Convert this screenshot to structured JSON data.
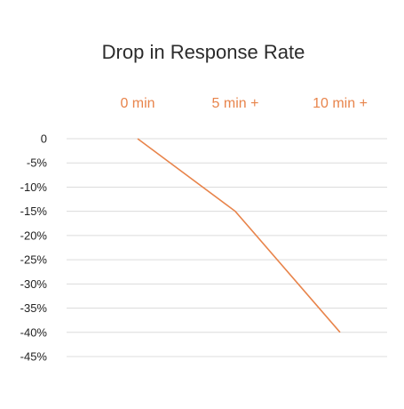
{
  "chart_data": {
    "type": "line",
    "title": "Drop in Response Rate",
    "xlabel": "",
    "ylabel": "",
    "x_position": "top",
    "categories": [
      "0 min",
      "5 min +",
      "10 min +"
    ],
    "series": [
      {
        "values": [
          0,
          -15,
          -40
        ]
      }
    ],
    "yticks": [
      0,
      -5,
      -10,
      -15,
      -20,
      -25,
      -30,
      -35,
      -40,
      -45
    ],
    "ytick_labels": [
      "0",
      "-5%",
      "-10%",
      "-15%",
      "-20%",
      "-25%",
      "-30%",
      "-35%",
      "-40%",
      "-45%"
    ],
    "ylim": [
      -45,
      0
    ],
    "grid": true,
    "legend": "none"
  },
  "colors": {
    "accent": "#e8844b",
    "title": "#2b2b2b",
    "tick": "#222222",
    "grid": "#dcdcdc"
  }
}
